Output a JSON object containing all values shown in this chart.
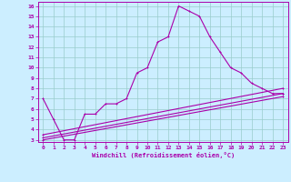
{
  "xlabel": "Windchill (Refroidissement éolien,°C)",
  "bg_color": "#cceeff",
  "line_color": "#aa00aa",
  "grid_color": "#99cccc",
  "x_ticks": [
    0,
    1,
    2,
    3,
    4,
    5,
    6,
    7,
    8,
    9,
    10,
    11,
    12,
    13,
    14,
    15,
    16,
    17,
    18,
    19,
    20,
    21,
    22,
    23
  ],
  "y_ticks": [
    3,
    4,
    5,
    6,
    7,
    8,
    9,
    10,
    11,
    12,
    13,
    14,
    15,
    16
  ],
  "ylim": [
    2.8,
    16.4
  ],
  "xlim": [
    -0.5,
    23.5
  ],
  "line1_x": [
    0,
    1,
    2,
    3,
    4,
    5,
    6,
    7,
    8,
    9,
    10,
    11,
    12,
    13,
    14,
    15,
    16,
    17,
    18,
    19,
    20,
    21,
    22,
    23
  ],
  "line1_y": [
    7.0,
    5.0,
    3.0,
    3.0,
    5.5,
    5.5,
    6.5,
    6.5,
    7.0,
    9.5,
    10.0,
    12.5,
    13.0,
    16.0,
    15.5,
    15.0,
    13.0,
    11.5,
    10.0,
    9.5,
    8.5,
    8.0,
    7.5,
    7.5
  ],
  "line2_x": [
    0,
    23
  ],
  "line2_y": [
    3.2,
    7.5
  ],
  "line3_x": [
    0,
    23
  ],
  "line3_y": [
    3.0,
    7.2
  ],
  "line4_x": [
    0,
    23
  ],
  "line4_y": [
    3.5,
    8.0
  ]
}
